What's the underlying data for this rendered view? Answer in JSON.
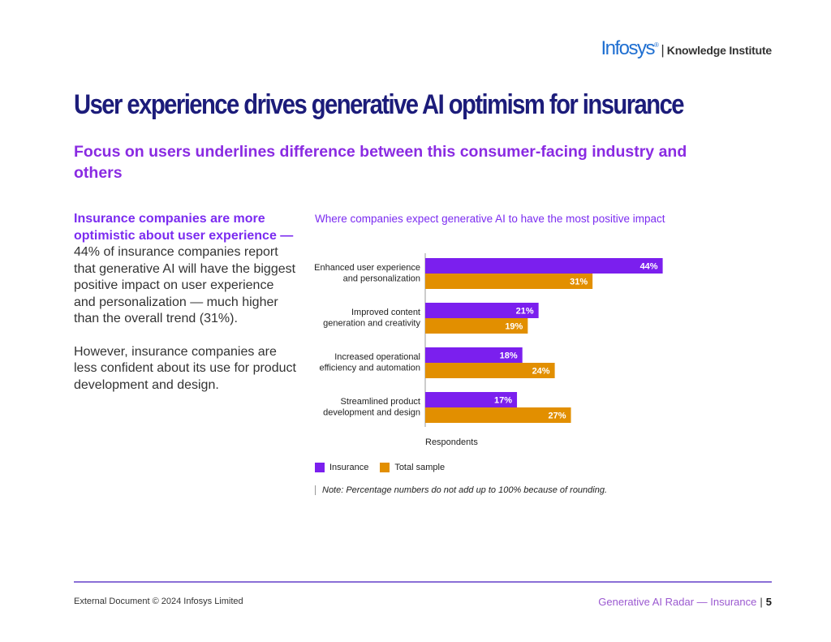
{
  "brand": {
    "logo": "Infosys",
    "registered": "®",
    "separator": "|",
    "sub": "Knowledge Institute"
  },
  "page": {
    "title": "User experience drives generative AI optimism for insurance",
    "subtitle": "Focus on users underlines difference between this consumer-facing industry and others"
  },
  "left_text": {
    "highlight": "Insurance companies are more optimistic about user experience —",
    "body": " 44% of insurance companies report that generative AI will have the biggest positive impact on user experience and personalization — much higher than the overall trend (31%).",
    "para2": "However, insurance companies are less confident about its use for product development and design."
  },
  "chart_data": {
    "type": "bar",
    "orientation": "horizontal",
    "title": "Where companies expect generative AI to have the most positive impact",
    "categories": [
      [
        "Enhanced user experience",
        "and personalization"
      ],
      [
        "Improved content",
        "generation and creativity"
      ],
      [
        "Increased operational",
        "efficiency and automation"
      ],
      [
        "Streamlined product",
        "development and design"
      ]
    ],
    "series": [
      {
        "name": "Insurance",
        "values": [
          44,
          21,
          18,
          17
        ],
        "color": "#7b1fee"
      },
      {
        "name": "Total sample",
        "values": [
          31,
          19,
          24,
          27
        ],
        "color": "#e28f00"
      }
    ],
    "value_suffix": "%",
    "xlabel": "Respondents",
    "xlim": [
      0,
      50
    ],
    "grid": false,
    "legend": "bottom-left"
  },
  "note": "Note: Percentage numbers do not add up to 100% because of rounding.",
  "footer": {
    "left": "External Document © 2024 Infosys Limited",
    "right": "Generative AI Radar — Insurance",
    "separator": "|",
    "page": "5"
  }
}
